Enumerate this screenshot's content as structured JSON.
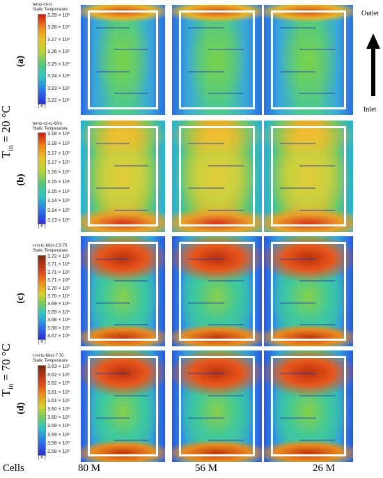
{
  "side_labels": {
    "outlet": "Outlet",
    "inlet": "Inlet"
  },
  "temperature_labels": [
    {
      "prefix": "T",
      "sub": "in",
      "value": " = 20 °C"
    },
    {
      "prefix": "T",
      "sub": "in",
      "value": " = 70 °C"
    }
  ],
  "bottom_labels": {
    "cells": "Cells",
    "cols": [
      "80 M",
      "56 M",
      "26 M"
    ]
  },
  "rows": [
    {
      "label": "(a)",
      "cb_title": [
        "temp-mi-tc",
        "Static Temperature"
      ],
      "ticks": [
        "3.29 × 10²",
        "3.28 × 10²",
        "3.27 × 10²",
        "3.26 × 10²",
        "3.25 × 10²",
        "3.24 × 10²",
        "3.23 × 10²",
        "3.22 × 10²"
      ],
      "unit": "[ K ]"
    },
    {
      "label": "(b)",
      "cb_title": [
        "temp-mi-tc-60m",
        "Static Temperature"
      ],
      "ticks": [
        "3.18 × 10²",
        "3.18 × 10²",
        "3.17 × 10²",
        "3.17 × 10²",
        "3.16 × 10²",
        "3.15 × 10²",
        "3.15 × 10²",
        "3.14 × 10²",
        "3.14 × 10²",
        "3.13 × 10²"
      ],
      "unit": "[ K ]"
    },
    {
      "label": "(c)",
      "cb_title": [
        "t-mi-tc-60m-2.5-70",
        "Static Temperature"
      ],
      "ticks": [
        "3.72 × 10²",
        "3.71 × 10²",
        "3.71 × 10²",
        "3.71 × 10²",
        "3.70 × 10²",
        "3.70 × 10²",
        "3.69 × 10²",
        "3.69 × 10²",
        "3.68 × 10²",
        "3.68 × 10²",
        "3.67 × 10²"
      ],
      "unit": "[ K ]"
    },
    {
      "label": "(d)",
      "cb_title": [
        "t-mi-tc-60m-7-70",
        "Static Temperature"
      ],
      "ticks": [
        "3.63 × 10²",
        "3.62 × 10²",
        "3.62 × 10²",
        "3.61 × 10²",
        "3.61 × 10²",
        "3.60 × 10²",
        "3.60 × 10²",
        "3.59 × 10²",
        "3.59 × 10²",
        "3.58 × 10²",
        "3.58 × 10²"
      ],
      "unit": "[ K ]"
    }
  ]
}
